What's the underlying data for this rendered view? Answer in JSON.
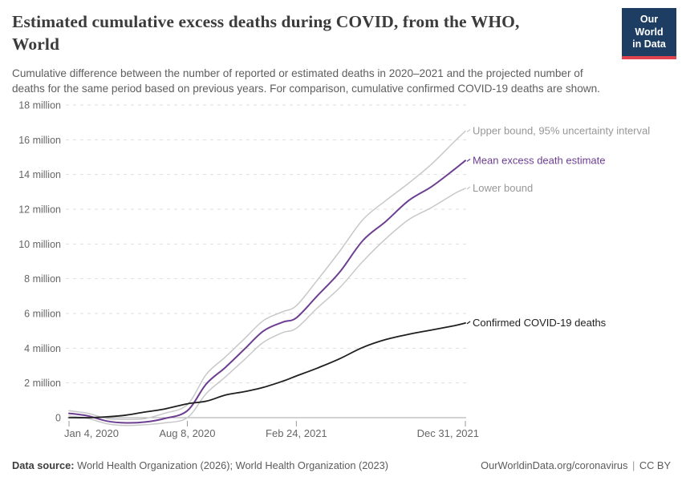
{
  "header": {
    "title": {
      "line1": "Estimated cumulative excess deaths during COVID, from the WHO,",
      "line2": "World"
    },
    "subtitle": "Cumulative difference between the number of reported or estimated deaths in 2020–2021 and the projected number of deaths for the same period based on previous years. For comparison, cumulative confirmed COVID-19 deaths are shown.",
    "logo": {
      "line1": "Our World",
      "line2": "in Data",
      "bg_color": "#1d3d63",
      "accent_color": "#e0434e"
    }
  },
  "footer": {
    "data_source_label": "Data source:",
    "sources": "World Health Organization (2026); World Health Organization (2023)",
    "url": "OurWorldinData.org/coronavirus",
    "separator": "|",
    "license": "CC BY"
  },
  "chart_data": {
    "type": "line",
    "title": "Estimated cumulative excess deaths during COVID, from the WHO, World",
    "unit": "deaths (millions)",
    "xlabel": "",
    "ylabel": "",
    "ylim": [
      0,
      18
    ],
    "grid": "horizontal-dashed",
    "legend_position": "right-end-labels",
    "x_range": [
      "2020-01-04",
      "2021-12-31"
    ],
    "x_dates": [
      "2020-01-04",
      "2020-02-08",
      "2020-03-14",
      "2020-04-18",
      "2020-05-23",
      "2020-06-27",
      "2020-08-08",
      "2020-09-12",
      "2020-10-17",
      "2020-11-21",
      "2020-12-26",
      "2021-01-30",
      "2021-02-24",
      "2021-04-03",
      "2021-05-15",
      "2021-06-26",
      "2021-08-07",
      "2021-09-18",
      "2021-10-30",
      "2021-12-11",
      "2021-12-31"
    ],
    "x_ticks": [
      {
        "date": "2020-01-04",
        "label": "Jan 4, 2020",
        "align": "start"
      },
      {
        "date": "2020-08-08",
        "label": "Aug 8, 2020",
        "align": "middle"
      },
      {
        "date": "2021-02-24",
        "label": "Feb 24, 2021",
        "align": "middle"
      },
      {
        "date": "2021-12-31",
        "label": "Dec 31, 2021",
        "align": "end"
      }
    ],
    "y_ticks": [
      {
        "value": 0,
        "label": "0"
      },
      {
        "value": 2,
        "label": "2 million"
      },
      {
        "value": 4,
        "label": "4 million"
      },
      {
        "value": 6,
        "label": "6 million"
      },
      {
        "value": 8,
        "label": "8 million"
      },
      {
        "value": 10,
        "label": "10 million"
      },
      {
        "value": 12,
        "label": "12 million"
      },
      {
        "value": 14,
        "label": "14 million"
      },
      {
        "value": 16,
        "label": "16 million"
      },
      {
        "value": 18,
        "label": "18 million"
      }
    ],
    "series": [
      {
        "id": "upper",
        "name": "Upper bound, 95% uncertainty interval",
        "color": "#c8c8c8",
        "label_color": "#979797",
        "width": 1.5,
        "z": 1,
        "values": [
          0.4,
          0.25,
          -0.05,
          -0.1,
          -0.05,
          0.25,
          0.75,
          2.5,
          3.5,
          4.55,
          5.6,
          6.1,
          6.45,
          7.9,
          9.6,
          11.4,
          12.5,
          13.5,
          14.6,
          15.9,
          16.5
        ]
      },
      {
        "id": "mean",
        "name": "Mean excess death estimate",
        "color": "#6d3e91",
        "label_color": "#6d3e91",
        "width": 2,
        "z": 2,
        "values": [
          0.25,
          0.1,
          -0.2,
          -0.3,
          -0.25,
          -0.05,
          0.4,
          1.95,
          2.9,
          3.95,
          5.0,
          5.5,
          5.75,
          7.0,
          8.4,
          10.2,
          11.3,
          12.5,
          13.3,
          14.3,
          14.8
        ]
      },
      {
        "id": "lower",
        "name": "Lower bound",
        "color": "#c8c8c8",
        "label_color": "#979797",
        "width": 1.5,
        "z": 1,
        "values": [
          0.1,
          -0.05,
          -0.35,
          -0.45,
          -0.4,
          -0.3,
          0.0,
          1.4,
          2.35,
          3.35,
          4.35,
          4.9,
          5.15,
          6.3,
          7.5,
          9.0,
          10.3,
          11.4,
          12.1,
          12.9,
          13.2
        ]
      },
      {
        "id": "confirmed",
        "name": "Confirmed COVID-19 deaths",
        "color": "#1f1f1f",
        "label_color": "#1f1f1f",
        "width": 1.8,
        "z": 3,
        "values": [
          0.0,
          0.0,
          0.05,
          0.15,
          0.33,
          0.5,
          0.8,
          0.95,
          1.3,
          1.5,
          1.75,
          2.1,
          2.4,
          2.85,
          3.4,
          4.05,
          4.5,
          4.8,
          5.05,
          5.3,
          5.45
        ]
      }
    ],
    "colors": {
      "grid": "#dedede",
      "axis": "#a6a6a6",
      "tick_mark": "#999999",
      "tick_text": "#666666"
    }
  }
}
